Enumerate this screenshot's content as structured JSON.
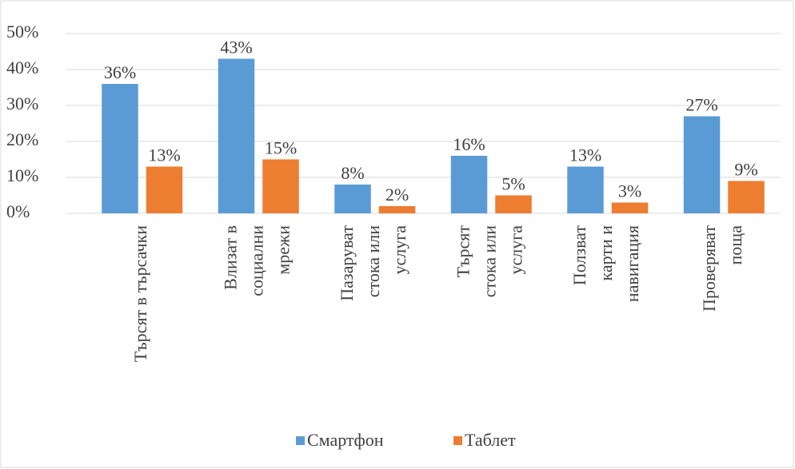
{
  "chart_data": {
    "type": "bar",
    "categories": [
      [
        "Търсят в търсачки"
      ],
      [
        "Влизат в",
        "социални",
        "мрежи"
      ],
      [
        "Пазаруват",
        "стока или",
        "услуга"
      ],
      [
        "Търсят",
        "стока или",
        "услуга"
      ],
      [
        "Ползват",
        "карти и",
        "навигация"
      ],
      [
        "Проверяват",
        "поща"
      ]
    ],
    "series": [
      {
        "name": "Смартфон",
        "color": "#5b9bd5",
        "values": [
          36,
          43,
          8,
          16,
          13,
          27
        ],
        "value_labels": [
          "36%",
          "43%",
          "8%",
          "16%",
          "13%",
          "27%"
        ]
      },
      {
        "name": "Таблет",
        "color": "#ed7d31",
        "values": [
          13,
          15,
          2,
          5,
          3,
          9
        ],
        "value_labels": [
          "13%",
          "15%",
          "2%",
          "5%",
          "3%",
          "9%"
        ]
      }
    ],
    "ylim": [
      0,
      50
    ],
    "yticks": [
      {
        "value": 0,
        "label": "0%"
      },
      {
        "value": 10,
        "label": "10%"
      },
      {
        "value": 20,
        "label": "20%"
      },
      {
        "value": 30,
        "label": "30%"
      },
      {
        "value": 40,
        "label": "40%"
      },
      {
        "value": 50,
        "label": "50%"
      }
    ],
    "grid": true,
    "legend": "bottom"
  }
}
